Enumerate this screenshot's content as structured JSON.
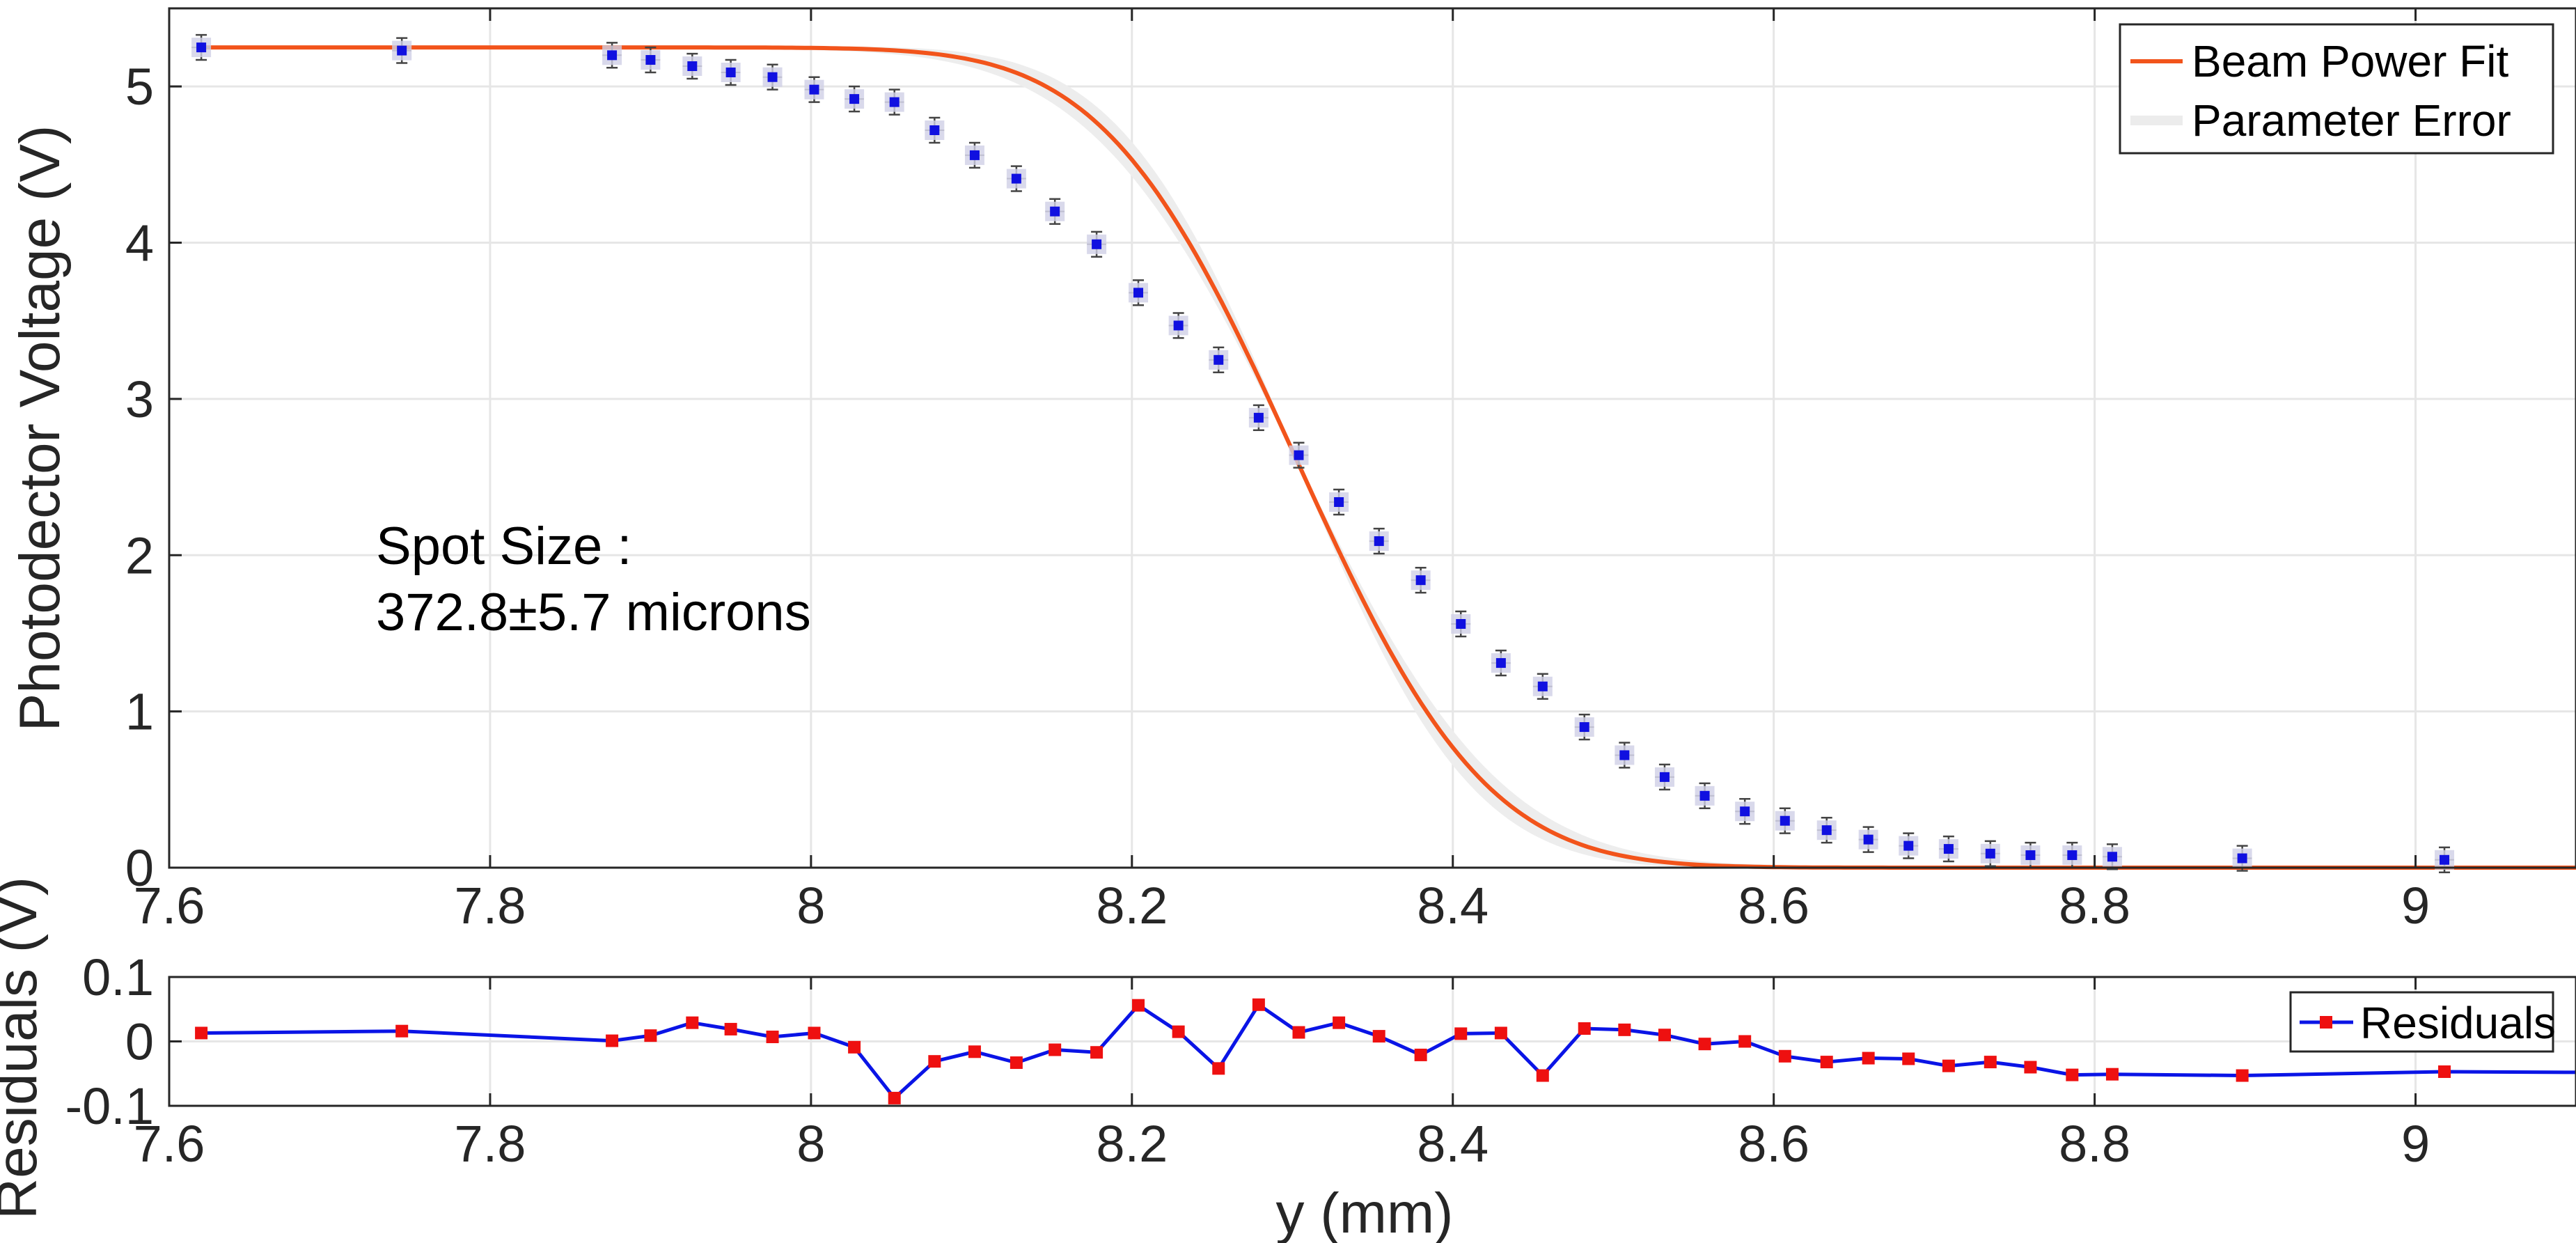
{
  "colors": {
    "fit": "#F2541B",
    "band": "#E6E6E6",
    "points": "#1010E0",
    "residuals": "#0A14E6",
    "residual_markers": "#EE1010",
    "grid": "#E6E6E6",
    "axes": "#262626"
  },
  "chart_data": [
    {
      "type": "scatter",
      "xlabel": "",
      "ylabel": "Photodector Voltage (V)",
      "xlim": [
        7.6,
        9.1
      ],
      "ylim": [
        0,
        5.5
      ],
      "xticks": [
        "7.6",
        "7.8",
        "8",
        "8.2",
        "8.4",
        "8.6",
        "8.8",
        "9"
      ],
      "yticks": [
        "0",
        "1",
        "2",
        "3",
        "4",
        "5"
      ],
      "grid": true,
      "legend_position": "top-right",
      "annotation": {
        "line1": "Spot Size :",
        "line2": "372.8±5.7 microns"
      },
      "fit": {
        "name": "Beam Power Fit",
        "amplitude": 5.25,
        "center": 8.302,
        "radius_mm": 0.1864,
        "x_range": [
          7.62,
          9.1
        ]
      },
      "band": {
        "name": "Parameter Error"
      },
      "series": [
        {
          "name": "",
          "x": [
            7.62,
            7.745,
            7.876,
            7.9,
            7.926,
            7.95,
            7.976,
            8.002,
            8.027,
            8.052,
            8.077,
            8.102,
            8.128,
            8.152,
            8.178,
            8.204,
            8.229,
            8.254,
            8.279,
            8.304,
            8.329,
            8.354,
            8.38,
            8.405,
            8.43,
            8.456,
            8.482,
            8.507,
            8.532,
            8.557,
            8.582,
            8.607,
            8.633,
            8.659,
            8.684,
            8.709,
            8.735,
            8.76,
            8.786,
            8.811,
            8.892,
            9.018
          ],
          "y": [
            5.25,
            5.23,
            5.2,
            5.17,
            5.13,
            5.09,
            5.06,
            4.98,
            4.92,
            4.9,
            4.72,
            4.56,
            4.41,
            4.2,
            3.99,
            3.68,
            3.47,
            3.25,
            2.88,
            2.64,
            2.34,
            2.09,
            1.84,
            1.56,
            1.31,
            1.16,
            0.9,
            0.72,
            0.58,
            0.46,
            0.36,
            0.3,
            0.24,
            0.18,
            0.14,
            0.12,
            0.09,
            0.08,
            0.08,
            0.07,
            0.06,
            0.05
          ],
          "yerr": 0.08,
          "xerr": 0.006
        }
      ]
    },
    {
      "type": "line",
      "xlabel": "y (mm)",
      "ylabel": "Residuals (V)",
      "xlim": [
        7.6,
        9.1
      ],
      "ylim": [
        -0.1,
        0.1
      ],
      "xticks": [
        "7.6",
        "7.8",
        "8",
        "8.2",
        "8.4",
        "8.6",
        "8.8",
        "9"
      ],
      "yticks": [
        "-0.1",
        "0",
        "0.1"
      ],
      "grid": true,
      "legend_position": "top-right",
      "series": [
        {
          "name": "Residuals",
          "x": [
            7.62,
            7.745,
            7.876,
            7.9,
            7.926,
            7.95,
            7.976,
            8.002,
            8.027,
            8.052,
            8.077,
            8.102,
            8.128,
            8.152,
            8.178,
            8.204,
            8.229,
            8.254,
            8.279,
            8.304,
            8.329,
            8.354,
            8.38,
            8.405,
            8.43,
            8.456,
            8.482,
            8.507,
            8.532,
            8.557,
            8.582,
            8.607,
            8.633,
            8.659,
            8.684,
            8.709,
            8.735,
            8.76,
            8.786,
            8.811,
            8.892,
            9.018
          ],
          "y": [
            0.013,
            0.016,
            0.001,
            0.009,
            0.029,
            0.019,
            0.007,
            0.013,
            -0.009,
            -0.088,
            -0.031,
            -0.016,
            -0.033,
            -0.013,
            -0.017,
            0.056,
            0.015,
            -0.042,
            0.057,
            0.014,
            0.029,
            0.008,
            -0.021,
            0.012,
            0.013,
            -0.053,
            0.02,
            0.018,
            0.01,
            -0.004,
            0.0,
            -0.023,
            -0.032,
            -0.026,
            -0.027,
            -0.038,
            -0.032,
            -0.04,
            -0.052,
            -0.051,
            -0.053,
            -0.047
          ],
          "tail": {
            "x": 9.1,
            "y": -0.048
          }
        }
      ]
    }
  ]
}
